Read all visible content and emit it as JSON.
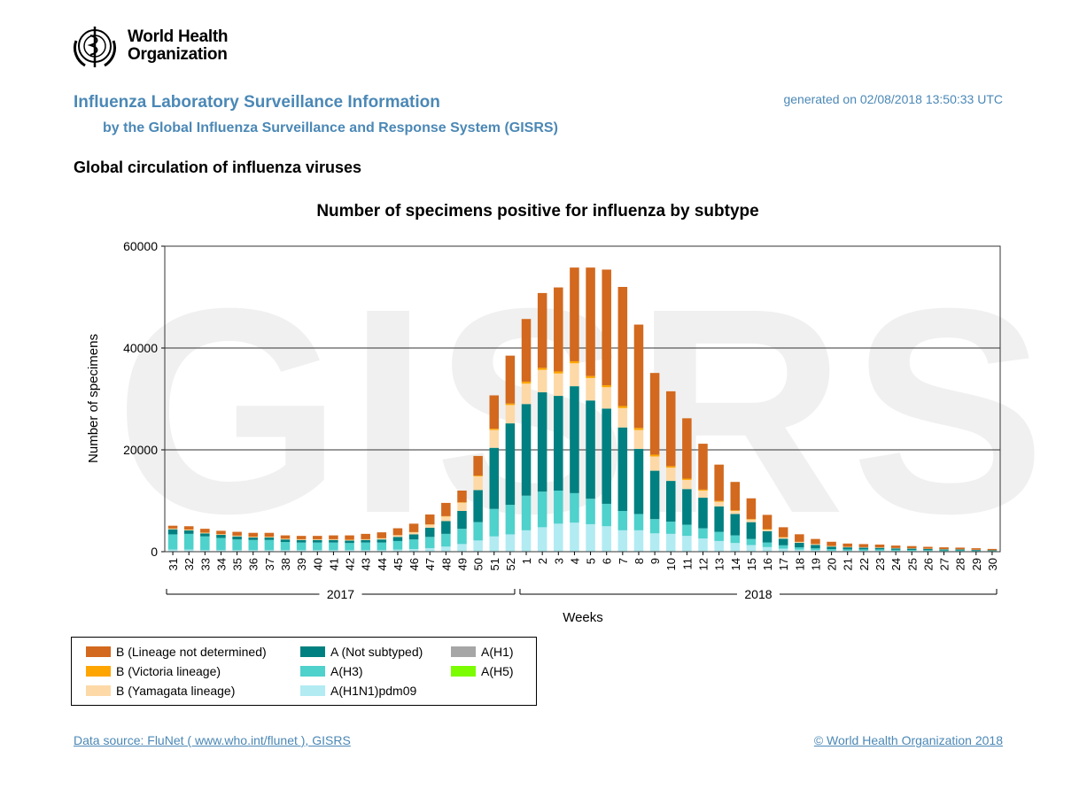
{
  "header": {
    "logo_text_line1": "World Health",
    "logo_text_line2": "Organization",
    "title": "Influenza Laboratory Surveillance Information",
    "subtitle": "by the Global Influenza Surveillance and Response System (GISRS)",
    "generated": "generated on 02/08/2018 13:50:33 UTC",
    "section_title": "Global circulation of influenza viruses"
  },
  "chart_data": {
    "type": "bar",
    "stacked": true,
    "title": "Number of specimens positive for influenza by subtype",
    "xlabel": "Weeks",
    "ylabel": "Number of specimens",
    "ylim": [
      0,
      60000
    ],
    "yticks": [
      0,
      20000,
      40000,
      60000
    ],
    "grid": true,
    "watermark": "GISRS",
    "categories": [
      "31",
      "32",
      "33",
      "34",
      "35",
      "36",
      "37",
      "38",
      "39",
      "40",
      "41",
      "42",
      "43",
      "44",
      "45",
      "46",
      "47",
      "48",
      "49",
      "50",
      "51",
      "52",
      "1",
      "2",
      "3",
      "4",
      "5",
      "6",
      "7",
      "8",
      "9",
      "10",
      "11",
      "12",
      "13",
      "14",
      "15",
      "16",
      "17",
      "18",
      "19",
      "20",
      "21",
      "22",
      "23",
      "24",
      "25",
      "26",
      "27",
      "28",
      "29",
      "30"
    ],
    "year_groups": [
      {
        "label": "2017",
        "from": 0,
        "to": 21
      },
      {
        "label": "2018",
        "from": 22,
        "to": 51
      }
    ],
    "series": [
      {
        "name": "A(H1N1)pdm09",
        "color": "#b2ebf2",
        "values": [
          400,
          400,
          300,
          300,
          300,
          300,
          300,
          300,
          300,
          300,
          300,
          300,
          300,
          300,
          400,
          500,
          700,
          1000,
          1500,
          2200,
          3000,
          3400,
          4200,
          4800,
          5500,
          5700,
          5400,
          5000,
          4200,
          4200,
          3600,
          3500,
          3100,
          2600,
          2100,
          1700,
          1300,
          900,
          600,
          400,
          300,
          200,
          200,
          200,
          200,
          150,
          150,
          120,
          100,
          100,
          80,
          60
        ]
      },
      {
        "name": "A(H3)",
        "color": "#4fd1cc",
        "values": [
          3000,
          3100,
          2700,
          2400,
          2100,
          2000,
          2000,
          1600,
          1500,
          1500,
          1500,
          1400,
          1500,
          1500,
          1700,
          1900,
          2200,
          2500,
          3000,
          3600,
          5400,
          5800,
          6800,
          7000,
          6500,
          5800,
          5000,
          4400,
          3800,
          3200,
          2800,
          2400,
          2200,
          2000,
          1800,
          1500,
          1200,
          900,
          650,
          450,
          350,
          300,
          250,
          250,
          250,
          220,
          200,
          180,
          150,
          150,
          120,
          100
        ]
      },
      {
        "name": "A(Not subtyped)",
        "color": "#008080",
        "values": [
          1000,
          700,
          600,
          600,
          600,
          500,
          500,
          500,
          500,
          500,
          500,
          500,
          500,
          600,
          800,
          1000,
          1800,
          2500,
          3500,
          6300,
          12000,
          16000,
          18000,
          19500,
          18600,
          21000,
          19300,
          18700,
          16400,
          12800,
          9500,
          8000,
          7000,
          6000,
          5000,
          4200,
          3300,
          2200,
          1300,
          900,
          700,
          500,
          400,
          350,
          300,
          280,
          250,
          220,
          200,
          180,
          140,
          100
        ]
      },
      {
        "name": "A(H1)",
        "color": "#a6a6a6",
        "values": [
          0,
          0,
          0,
          0,
          0,
          0,
          0,
          0,
          0,
          0,
          0,
          0,
          0,
          0,
          0,
          0,
          0,
          0,
          0,
          0,
          0,
          0,
          0,
          0,
          0,
          0,
          0,
          0,
          0,
          0,
          0,
          0,
          0,
          0,
          0,
          0,
          0,
          0,
          0,
          0,
          0,
          0,
          0,
          0,
          0,
          0,
          0,
          0,
          0,
          0,
          0,
          0
        ]
      },
      {
        "name": "A(H5)",
        "color": "#7cfc00",
        "values": [
          0,
          0,
          0,
          0,
          0,
          0,
          0,
          0,
          0,
          0,
          0,
          0,
          0,
          0,
          0,
          0,
          0,
          0,
          0,
          0,
          0,
          0,
          0,
          0,
          0,
          0,
          0,
          0,
          0,
          0,
          0,
          0,
          0,
          0,
          0,
          0,
          0,
          0,
          0,
          0,
          0,
          0,
          0,
          0,
          0,
          0,
          0,
          0,
          0,
          0,
          0,
          0
        ]
      },
      {
        "name": "B (Yamagata lineage)",
        "color": "#fdd9a8",
        "values": [
          100,
          100,
          100,
          100,
          100,
          100,
          100,
          100,
          100,
          100,
          100,
          100,
          100,
          200,
          300,
          400,
          600,
          900,
          1600,
          2700,
          3500,
          3600,
          4000,
          4400,
          4400,
          4500,
          4400,
          4200,
          3800,
          3700,
          2800,
          2600,
          1800,
          1400,
          900,
          600,
          500,
          350,
          250,
          150,
          120,
          100,
          80,
          70,
          60,
          50,
          50,
          40,
          40,
          30,
          30,
          20
        ]
      },
      {
        "name": "B (Victoria lineage)",
        "color": "#ffa500",
        "values": [
          50,
          50,
          50,
          50,
          50,
          50,
          50,
          50,
          50,
          50,
          50,
          50,
          50,
          50,
          50,
          50,
          60,
          80,
          100,
          150,
          250,
          300,
          400,
          400,
          400,
          400,
          400,
          400,
          400,
          400,
          350,
          300,
          250,
          200,
          150,
          120,
          100,
          80,
          60,
          40,
          30,
          30,
          20,
          20,
          20,
          20,
          20,
          15,
          15,
          10,
          10,
          10
        ]
      },
      {
        "name": "B (Lineage not determined)",
        "color": "#d2691e",
        "values": [
          550,
          650,
          750,
          650,
          750,
          750,
          750,
          650,
          650,
          650,
          750,
          850,
          1050,
          1150,
          1350,
          1650,
          1940,
          2600,
          2300,
          3850,
          6550,
          9400,
          12300,
          14700,
          16500,
          18400,
          21300,
          22700,
          23400,
          20300,
          16050,
          14700,
          11850,
          9000,
          7150,
          5580,
          4080,
          2800,
          1940,
          1480,
          1000,
          820,
          650,
          600,
          570,
          480,
          430,
          380,
          350,
          330,
          300,
          250
        ]
      }
    ]
  },
  "legend": {
    "items": [
      {
        "name": "B (Lineage not determined)",
        "color": "#d2691e"
      },
      {
        "name": "B (Victoria lineage)",
        "color": "#ffa500"
      },
      {
        "name": "B (Yamagata lineage)",
        "color": "#fdd9a8"
      },
      {
        "name": "A (Not subtyped)",
        "color": "#008080"
      },
      {
        "name": "A(H3)",
        "color": "#4fd1cc"
      },
      {
        "name": "A(H1N1)pdm09",
        "color": "#b2ebf2"
      },
      {
        "name": "A(H1)",
        "color": "#a6a6a6"
      },
      {
        "name": "A(H5)",
        "color": "#7cfc00"
      }
    ]
  },
  "footer": {
    "data_source": "Data source: FluNet ( www.who.int/flunet ), GISRS",
    "copyright": "© World Health Organization 2018"
  }
}
